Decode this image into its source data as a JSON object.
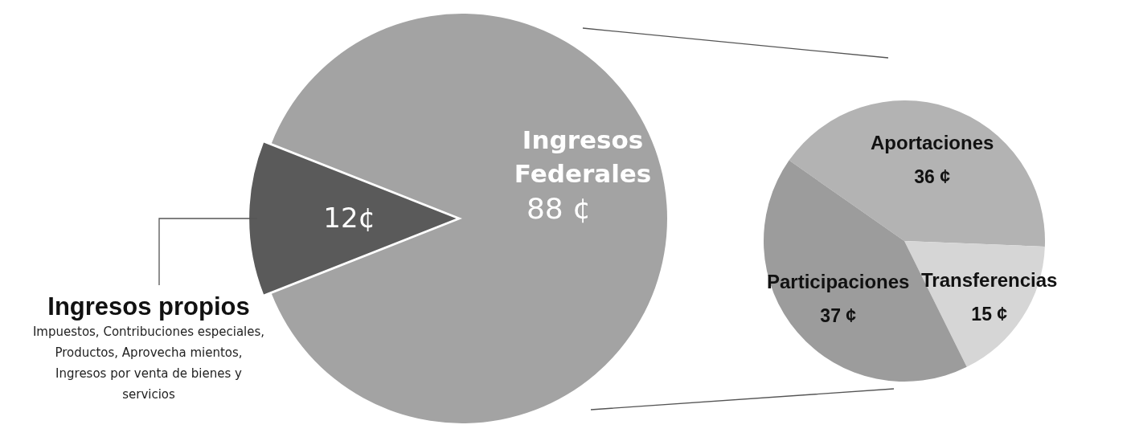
{
  "chart_data": [
    {
      "type": "pie",
      "categories": [
        "Ingresos propios",
        "Ingresos Federales"
      ],
      "values": [
        12,
        88
      ],
      "value_labels": [
        "12¢",
        "88 ¢"
      ],
      "colors": [
        "#5a5a5a",
        "#a3a3a3"
      ],
      "legend": false,
      "annotations": [
        "Impuestos, Contribuciones especiales, Productos,  Aprovecha mientos, Ingresos por venta de bienes y servicios"
      ]
    },
    {
      "type": "pie",
      "categories": [
        "Aportaciones",
        "Transferencias",
        "Participaciones"
      ],
      "values": [
        36,
        15,
        37
      ],
      "value_labels": [
        "36 ¢",
        "15 ¢",
        "37 ¢"
      ],
      "colors": [
        "#b3b3b3",
        "#d6d6d6",
        "#9c9c9c"
      ],
      "legend": false
    }
  ]
}
